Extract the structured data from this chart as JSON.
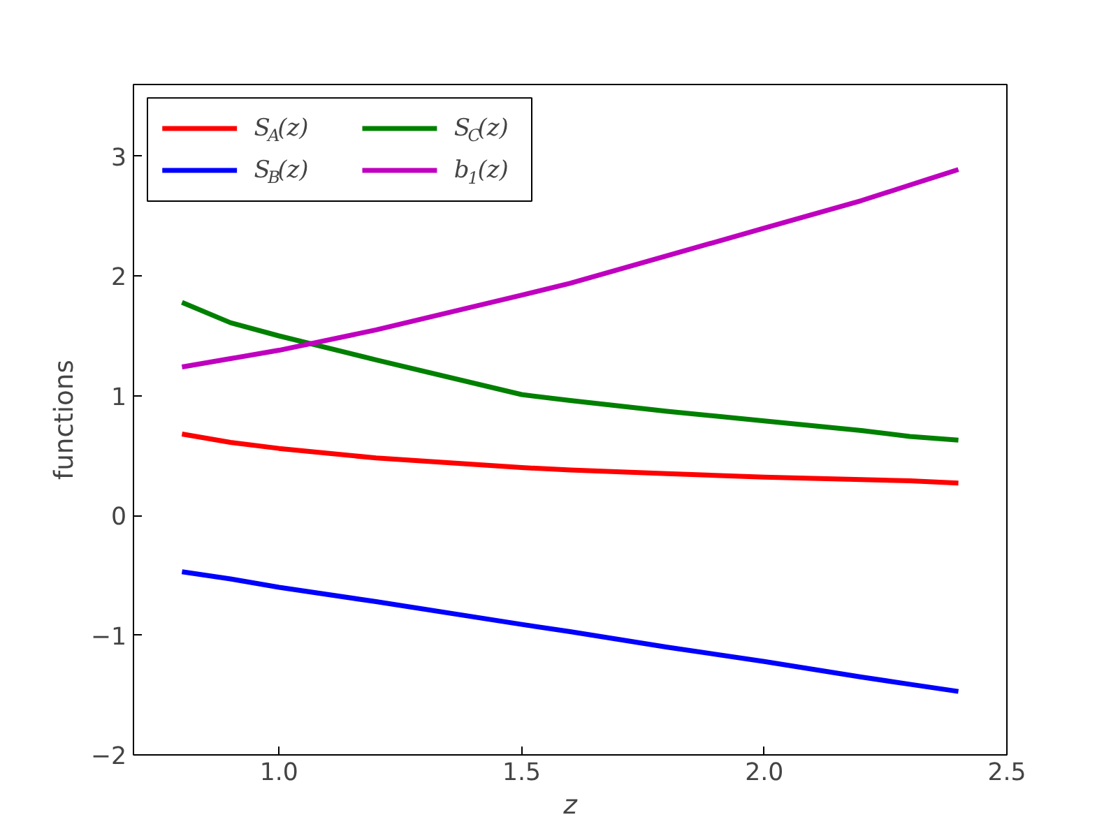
{
  "chart_data": {
    "type": "line",
    "xlabel": "z",
    "ylabel": "functions",
    "xlim": [
      0.7,
      2.5
    ],
    "ylim": [
      -2,
      3.6
    ],
    "xticks": [
      {
        "value": 1.0,
        "label": "1.0"
      },
      {
        "value": 1.5,
        "label": "1.5"
      },
      {
        "value": 2.0,
        "label": "2.0"
      },
      {
        "value": 2.5,
        "label": "2.5"
      }
    ],
    "yticks": [
      {
        "value": -2,
        "label": "−2"
      },
      {
        "value": -1,
        "label": "−1"
      },
      0,
      1,
      2,
      3
    ],
    "grid": false,
    "legend": "top left",
    "marker": "none",
    "line_style": "solid",
    "x": [
      0.8,
      0.9,
      1.0,
      1.2,
      1.5,
      1.6,
      1.8,
      2.0,
      2.2,
      2.3,
      2.4
    ],
    "series": [
      {
        "name": "S$_{A}$(z)",
        "color": "#ff0000",
        "values": [
          0.68,
          0.61,
          0.56,
          0.48,
          0.4,
          0.38,
          0.35,
          0.32,
          0.3,
          0.29,
          0.27
        ]
      },
      {
        "name": "S$_{B}$(z)",
        "color": "#0000ff",
        "values": [
          -0.47,
          -0.53,
          -0.6,
          -0.72,
          -0.91,
          -0.97,
          -1.1,
          -1.22,
          -1.35,
          -1.41,
          -1.47
        ]
      },
      {
        "name": "S$_{C}$(z)",
        "color": "#008000",
        "values": [
          1.78,
          1.61,
          1.5,
          1.3,
          1.01,
          0.96,
          0.87,
          0.79,
          0.71,
          0.66,
          0.63
        ]
      },
      {
        "name": "b$_{1}$(z)",
        "color": "#bf00bf",
        "values": [
          1.24,
          1.31,
          1.38,
          1.55,
          1.84,
          1.94,
          2.17,
          2.4,
          2.63,
          2.76,
          2.89
        ]
      }
    ]
  }
}
